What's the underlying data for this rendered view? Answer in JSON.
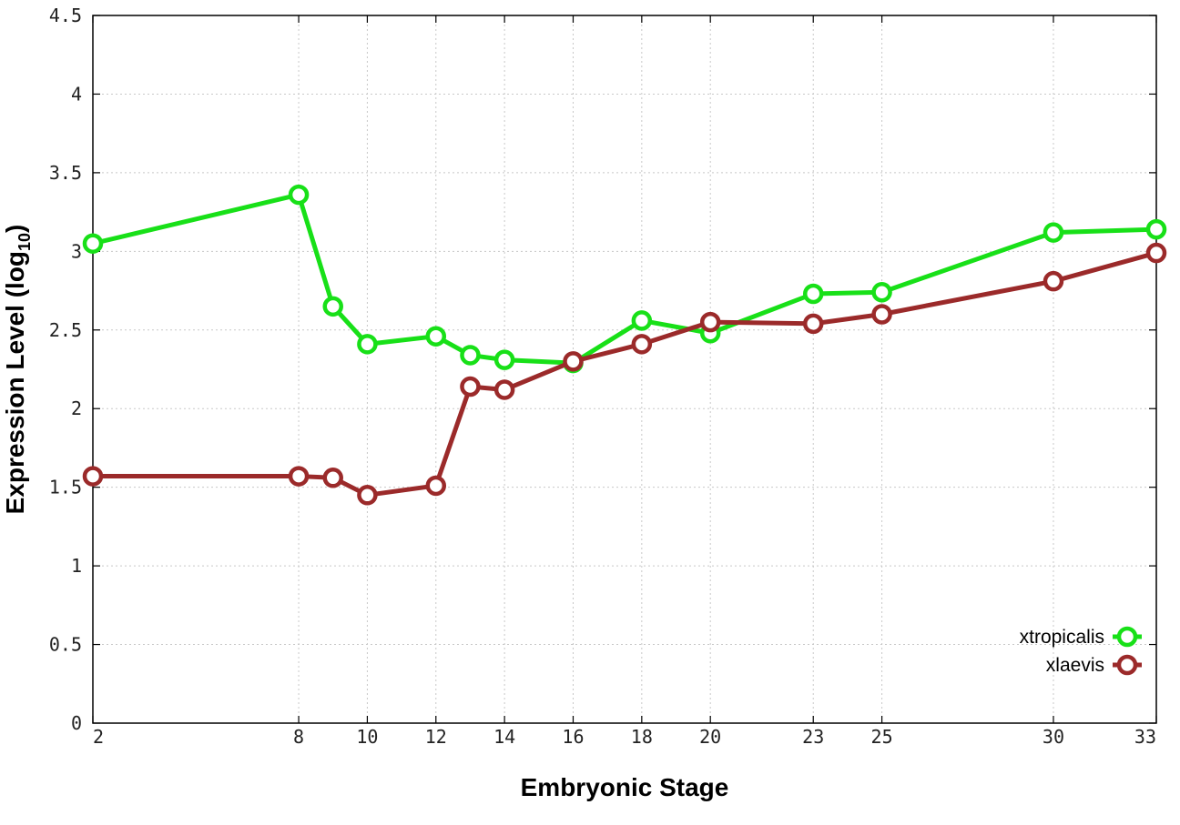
{
  "chart_data": {
    "type": "line",
    "title": "",
    "xlabel": "Embryonic Stage",
    "ylabel": "Expression Level (log",
    "ylabel_subscript": "10",
    "ylabel_close": ")",
    "x": [
      2,
      8,
      9,
      10,
      12,
      13,
      14,
      16,
      18,
      20,
      23,
      25,
      30,
      33
    ],
    "x_tick_labels": [
      "2",
      "8",
      "10",
      "12",
      "14",
      "16",
      "18",
      "20",
      "23",
      "25",
      "30",
      "33"
    ],
    "x_tick_values": [
      2,
      8,
      10,
      12,
      14,
      16,
      18,
      20,
      23,
      25,
      30,
      33
    ],
    "y_tick_labels": [
      "0",
      "0.5",
      "1",
      "1.5",
      "2",
      "2.5",
      "3",
      "3.5",
      "4",
      "4.5"
    ],
    "y_tick_values": [
      0,
      0.5,
      1,
      1.5,
      2,
      2.5,
      3,
      3.5,
      4,
      4.5
    ],
    "xlim": [
      2,
      33
    ],
    "ylim": [
      0,
      4.5
    ],
    "grid": true,
    "legend_position": "bottom-right",
    "series": [
      {
        "name": "xtropicalis",
        "color": "#18e018",
        "values": [
          3.05,
          3.36,
          2.65,
          2.41,
          2.46,
          2.34,
          2.31,
          2.29,
          2.56,
          2.48,
          2.73,
          2.74,
          3.12,
          3.14
        ]
      },
      {
        "name": "xlaevis",
        "color": "#9b2a2a",
        "values": [
          1.57,
          1.57,
          1.56,
          1.45,
          1.51,
          2.14,
          2.12,
          2.3,
          2.41,
          2.55,
          2.54,
          2.6,
          2.81,
          2.99
        ]
      }
    ]
  }
}
